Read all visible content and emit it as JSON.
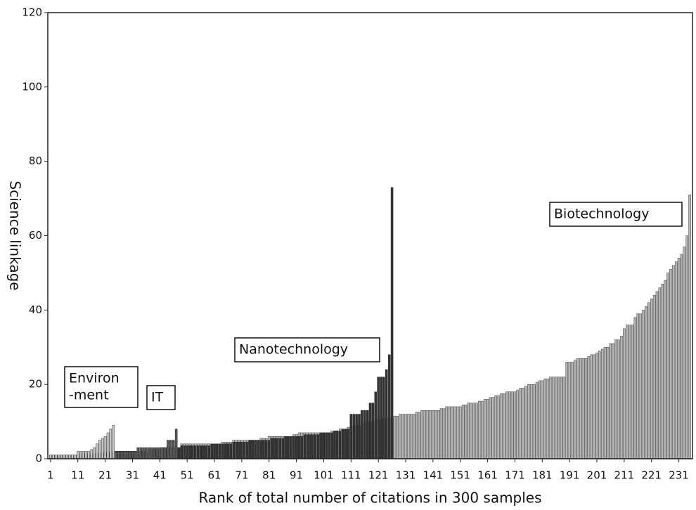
{
  "chart_data": {
    "type": "bar",
    "xlabel": "Rank of total number of citations in 300 samples",
    "ylabel": "Science linkage",
    "xlim": [
      0,
      236
    ],
    "ylim": [
      0,
      120
    ],
    "xticks": [
      1,
      11,
      21,
      31,
      41,
      51,
      61,
      71,
      81,
      91,
      101,
      111,
      121,
      131,
      141,
      151,
      161,
      171,
      181,
      191,
      201,
      211,
      221,
      231
    ],
    "yticks": [
      0,
      20,
      40,
      60,
      80,
      100,
      120
    ],
    "annotations": [
      {
        "lines": [
          "Environ",
          "-ment"
        ]
      },
      {
        "lines": [
          "IT"
        ]
      },
      {
        "lines": [
          "Nanotechnology"
        ]
      },
      {
        "lines": [
          "Biotechnology"
        ]
      }
    ],
    "series": [
      {
        "color": "#b4b4b4",
        "x": [
          1,
          2,
          3,
          4,
          5,
          6,
          7,
          8,
          9,
          10,
          11,
          12,
          13,
          14,
          15,
          16,
          17,
          18,
          19,
          20,
          21,
          22,
          23,
          24,
          25,
          26,
          27,
          28,
          29,
          30,
          31,
          32,
          33,
          34,
          35,
          36,
          37,
          38,
          39,
          40,
          41,
          42,
          43,
          44,
          45,
          46,
          47,
          48,
          49,
          50,
          51,
          52,
          53,
          54,
          55,
          56,
          57,
          58,
          59,
          60,
          61,
          62,
          63,
          64,
          65,
          66,
          67,
          68,
          69,
          70,
          71,
          72,
          73,
          74,
          75,
          76,
          77,
          78,
          79,
          80,
          81,
          82,
          83,
          84,
          85,
          86,
          87,
          88,
          89,
          90,
          91,
          92,
          93,
          94,
          95,
          96,
          97,
          98,
          99,
          100,
          101,
          102,
          103,
          104,
          105,
          106,
          107,
          108,
          109,
          110,
          111,
          112,
          113,
          114,
          115,
          116,
          117,
          118,
          119,
          120,
          121,
          122,
          123,
          124,
          125,
          126,
          127,
          128,
          129,
          130,
          131,
          132,
          133,
          134,
          135,
          136,
          137,
          138,
          139,
          140,
          141,
          142,
          143,
          144,
          145,
          146,
          147,
          148,
          149,
          150,
          151,
          152,
          153,
          154,
          155,
          156,
          157,
          158,
          159,
          160,
          161,
          162,
          163,
          164,
          165,
          166,
          167,
          168,
          169,
          170,
          171,
          172,
          173,
          174,
          175,
          176,
          177,
          178,
          179,
          180,
          181,
          182,
          183,
          184,
          185,
          186,
          187,
          188,
          189,
          190,
          191,
          192,
          193,
          194,
          195,
          196,
          197,
          198,
          199,
          200,
          201,
          202,
          203,
          204,
          205,
          206,
          207,
          208,
          209,
          210,
          211,
          212,
          213,
          214,
          215,
          216,
          217,
          218,
          219,
          220,
          221,
          222,
          223,
          224,
          225,
          226,
          227,
          228,
          229,
          230,
          231,
          232,
          233,
          234,
          235
        ],
        "values": [
          1,
          1,
          1,
          1,
          1,
          1,
          1,
          1,
          1,
          1,
          1,
          1,
          1,
          1,
          1,
          1,
          1,
          1,
          1.5,
          1.5,
          1.5,
          1.5,
          1.5,
          2,
          2,
          2,
          2,
          2,
          2,
          2,
          2,
          2,
          2,
          2,
          2,
          2.5,
          2.5,
          2.5,
          2.5,
          2.5,
          3,
          3,
          3,
          3,
          3,
          3,
          3,
          3,
          4,
          4,
          4,
          4,
          4,
          4,
          4,
          4,
          4,
          4,
          4,
          4,
          4,
          4,
          4,
          4.5,
          4.5,
          4.5,
          4.5,
          5,
          5,
          5,
          5,
          5,
          5,
          5,
          5,
          5,
          5,
          5.5,
          5.5,
          5.5,
          6,
          6,
          6,
          6,
          6,
          6,
          6,
          6,
          6,
          6.5,
          6.5,
          7,
          7,
          7,
          7,
          7,
          7,
          7,
          7,
          7,
          7,
          7,
          7,
          7.5,
          7.5,
          7.5,
          8,
          8,
          8,
          8.5,
          8.5,
          9,
          9,
          9,
          9.5,
          9.5,
          10,
          10,
          10,
          10.5,
          10.5,
          10.5,
          11,
          11,
          11,
          11,
          11.5,
          11.5,
          12,
          12,
          12,
          12,
          12,
          12,
          12.5,
          12.5,
          13,
          13,
          13,
          13,
          13,
          13,
          13,
          13.5,
          13.5,
          14,
          14,
          14,
          14,
          14,
          14,
          14.5,
          14.5,
          15,
          15,
          15,
          15,
          15.5,
          15.5,
          16,
          16,
          16.5,
          16.5,
          17,
          17,
          17.5,
          17.5,
          18,
          18,
          18,
          18,
          18.5,
          19,
          19,
          19.5,
          20,
          20,
          20,
          20.5,
          21,
          21,
          21.5,
          21.5,
          22,
          22,
          22,
          22,
          22,
          22,
          26,
          26,
          26,
          26.5,
          27,
          27,
          27,
          27,
          27.5,
          28,
          28,
          28.5,
          29,
          29.5,
          30,
          30,
          31,
          31,
          32,
          32,
          33,
          35,
          36,
          36,
          36,
          38,
          39,
          39,
          40,
          41,
          42,
          43,
          44,
          45,
          46,
          47,
          48,
          50,
          51,
          52,
          53,
          54,
          55,
          57,
          60,
          71
        ]
      },
      {
        "color": "#333333",
        "x": [
          1,
          2,
          3,
          4,
          5,
          6,
          7,
          8,
          9,
          10,
          11,
          12,
          13,
          14,
          15,
          16,
          17,
          18,
          19,
          20,
          21,
          22,
          23,
          24,
          25,
          26,
          27,
          28,
          29,
          30,
          31,
          32,
          33,
          34,
          35,
          36,
          37,
          38,
          39,
          40,
          41,
          42,
          43,
          44,
          45,
          46,
          47,
          48,
          49,
          50,
          51,
          52,
          53,
          54,
          55,
          56,
          57,
          58,
          59,
          60,
          61,
          62,
          63,
          64,
          65,
          66,
          67,
          68,
          69,
          70,
          71,
          72,
          73,
          74,
          75,
          76,
          77,
          78,
          79,
          80,
          81,
          82,
          83,
          84,
          85,
          86,
          87,
          88,
          89,
          90,
          91,
          92,
          93,
          94,
          95,
          96,
          97,
          98,
          99,
          100,
          101,
          102,
          103,
          104,
          105,
          106,
          107,
          108,
          109,
          110,
          111,
          112,
          113,
          114,
          115,
          116,
          117,
          118,
          119,
          120,
          121,
          122,
          123,
          124,
          125,
          126
        ],
        "values": [
          1,
          1,
          1,
          1,
          1,
          1,
          1,
          1,
          1,
          1,
          1,
          1,
          1,
          1,
          1,
          1,
          1.5,
          1.5,
          1.5,
          1.5,
          1.5,
          1.5,
          2,
          2,
          2,
          2,
          2,
          2,
          2,
          2,
          2,
          2,
          2,
          2,
          2,
          2,
          2.5,
          2.5,
          2.5,
          2.5,
          2.5,
          3,
          3,
          3,
          3,
          3,
          3,
          3,
          3.5,
          3.5,
          3.5,
          3.5,
          3.5,
          3.5,
          3.5,
          3.5,
          3.5,
          3.5,
          3.5,
          4,
          4,
          4,
          4,
          4,
          4,
          4,
          4,
          4.5,
          4.5,
          4.5,
          4.5,
          4.5,
          4.5,
          5,
          5,
          5,
          5,
          5,
          5,
          5,
          5,
          5.5,
          5.5,
          5.5,
          5.5,
          5.5,
          6,
          6,
          6,
          6,
          6,
          6,
          6,
          6.5,
          6.5,
          6.5,
          6.5,
          6.5,
          6.5,
          7,
          7,
          7,
          7,
          7,
          7.5,
          7.5,
          7.5,
          8,
          8,
          8,
          12,
          12,
          12,
          12,
          13,
          13,
          13,
          15,
          15,
          18,
          22,
          22,
          22,
          24,
          28,
          73
        ]
      },
      {
        "color": "#555555",
        "x": [
          1,
          2,
          3,
          4,
          5,
          6,
          7,
          8,
          9,
          10,
          11,
          12,
          13,
          14,
          15,
          16,
          17,
          18,
          19,
          20,
          21,
          22,
          23,
          24,
          25,
          26,
          27,
          28,
          29,
          30,
          31,
          32,
          33,
          34,
          35,
          36,
          37,
          38,
          39,
          40,
          41,
          42,
          43,
          44,
          45,
          46,
          47
        ],
        "values": [
          1,
          1,
          1,
          1,
          1,
          1,
          1,
          1,
          1,
          1,
          1.5,
          1.5,
          1.5,
          1.5,
          1.5,
          1.5,
          1.5,
          1.5,
          1.5,
          1.5,
          2,
          2,
          2,
          2,
          2,
          2,
          2,
          2,
          2,
          2,
          2,
          2,
          3,
          3,
          3,
          3,
          3,
          3,
          3,
          3,
          3,
          3,
          3,
          5,
          5,
          5,
          8
        ]
      },
      {
        "color": "#c4c4c4",
        "x": [
          1,
          2,
          3,
          4,
          5,
          6,
          7,
          8,
          9,
          10,
          11,
          12,
          13,
          14,
          15,
          16,
          17,
          18,
          19,
          20,
          21,
          22,
          23,
          24
        ],
        "values": [
          1,
          1,
          1,
          1,
          1,
          1,
          1,
          1,
          1,
          1,
          2,
          2,
          2,
          2,
          2,
          2.5,
          3,
          4,
          5,
          5.5,
          6,
          7,
          8,
          9
        ]
      }
    ]
  }
}
